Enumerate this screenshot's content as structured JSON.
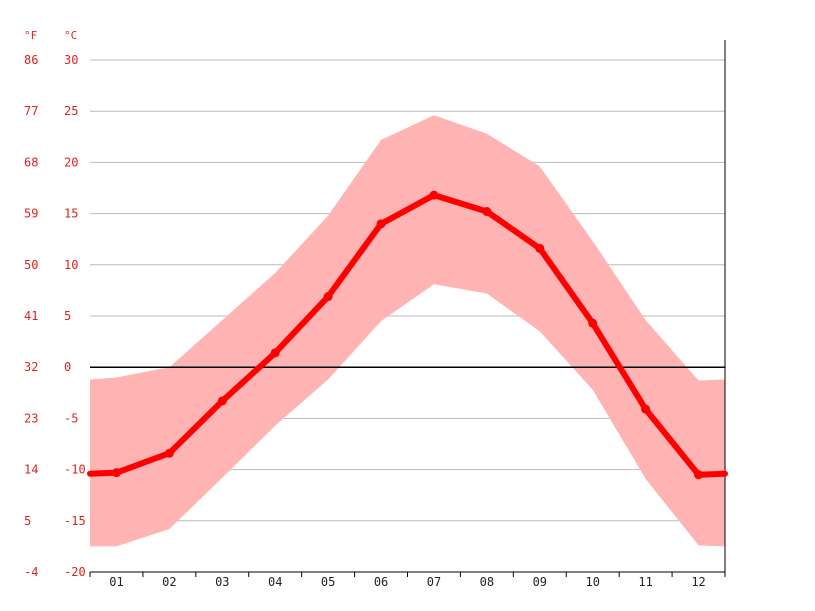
{
  "chart_data": {
    "type": "line",
    "title": "",
    "units": {
      "fahrenheit": "°F",
      "celsius": "°C"
    },
    "y_ticks_c": [
      "30",
      "25",
      "20",
      "15",
      "10",
      "5",
      "0",
      "-5",
      "-10",
      "-15",
      "-20"
    ],
    "y_ticks_f": [
      "86",
      "77",
      "68",
      "59",
      "50",
      "41",
      "32",
      "23",
      "14",
      "5",
      "-4"
    ],
    "categories": [
      "01",
      "02",
      "03",
      "04",
      "05",
      "06",
      "07",
      "08",
      "09",
      "10",
      "11",
      "12"
    ],
    "ylim": [
      -20,
      30
    ],
    "grid": true,
    "zero_line": true,
    "series": [
      {
        "role": "mean",
        "color": "#ff0000",
        "values": [
          -10.3,
          -8.4,
          -3.3,
          1.4,
          6.9,
          14.0,
          16.8,
          15.2,
          11.6,
          4.3,
          -4.1,
          -10.5
        ]
      },
      {
        "role": "max",
        "color": "#ffb3b3",
        "values": [
          -1.0,
          0.0,
          4.6,
          9.2,
          14.8,
          22.2,
          24.6,
          22.8,
          19.6,
          12.3,
          4.6,
          -1.3
        ]
      },
      {
        "role": "min",
        "color": "#ffb3b3",
        "values": [
          -17.5,
          -15.8,
          -10.8,
          -5.7,
          -1.2,
          4.5,
          8.1,
          7.2,
          3.5,
          -2.2,
          -10.9,
          -17.4
        ]
      }
    ],
    "edge_values": {
      "mean": [
        -10.4,
        -10.4
      ],
      "max": [
        -1.2,
        -1.2
      ],
      "min": [
        -17.5,
        -17.5
      ]
    }
  }
}
